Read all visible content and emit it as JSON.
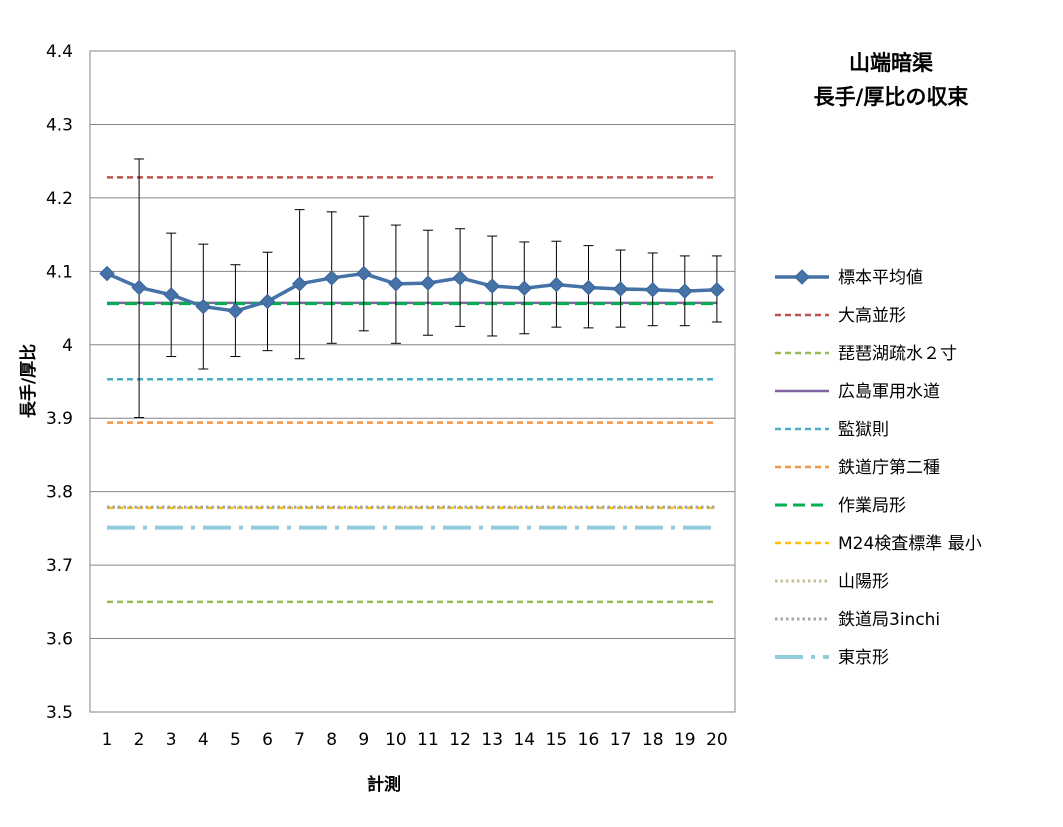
{
  "chart_data": {
    "type": "line",
    "title": [
      "山端暗渠",
      "長手/厚比の収束"
    ],
    "xlabel": "計測",
    "ylabel": "長手/厚比",
    "x": [
      "1",
      "2",
      "3",
      "4",
      "5",
      "6",
      "7",
      "8",
      "9",
      "10",
      "11",
      "12",
      "13",
      "14",
      "15",
      "16",
      "17",
      "18",
      "19",
      "20"
    ],
    "y_ticks": [
      "3.5",
      "3.6",
      "3.7",
      "3.8",
      "3.9",
      "4",
      "4.1",
      "4.2",
      "4.3",
      "4.4"
    ],
    "ylim": [
      3.5,
      4.4
    ],
    "grid": "horizontal",
    "legend_position": "right",
    "series": [
      {
        "name": "標本平均値",
        "style": "line-marker",
        "color": "#4572A7",
        "values": [
          4.097,
          4.078,
          4.068,
          4.052,
          4.046,
          4.059,
          4.083,
          4.091,
          4.097,
          4.083,
          4.084,
          4.091,
          4.08,
          4.077,
          4.082,
          4.078,
          4.076,
          4.075,
          4.073,
          4.075
        ],
        "error_upper": [
          4.097,
          4.253,
          4.152,
          4.137,
          4.109,
          4.126,
          4.184,
          4.181,
          4.175,
          4.163,
          4.156,
          4.158,
          4.148,
          4.14,
          4.141,
          4.135,
          4.129,
          4.125,
          4.121,
          4.121
        ],
        "error_lower": [
          4.097,
          3.901,
          3.984,
          3.967,
          3.984,
          3.992,
          3.981,
          4.002,
          4.019,
          4.002,
          4.013,
          4.025,
          4.012,
          4.015,
          4.024,
          4.023,
          4.024,
          4.026,
          4.026,
          4.031
        ]
      },
      {
        "name": "大高並形",
        "style": "dashed",
        "color": "#C0504D",
        "value": 4.228
      },
      {
        "name": "琵琶湖疏水２寸",
        "style": "dashed",
        "color": "#9BBB59",
        "value": 3.65
      },
      {
        "name": "広島軍用水道",
        "style": "solid",
        "color": "#8064A2",
        "value": 4.057
      },
      {
        "name": "監獄則",
        "style": "dashed",
        "color": "#4BACC6",
        "value": 3.953
      },
      {
        "name": "鉄道庁第二種",
        "style": "dashed",
        "color": "#F79646",
        "value": 3.894
      },
      {
        "name": "作業局形",
        "style": "long-dashed",
        "color": "#00B050",
        "value": 4.056
      },
      {
        "name": "M24検査標準 最小",
        "style": "dashed",
        "color": "#FFC000",
        "value": 3.778
      },
      {
        "name": "山陽形",
        "style": "dotted",
        "color": "#C4BD97",
        "value": 3.779
      },
      {
        "name": "鉄道局3inchi",
        "style": "dotted",
        "color": "#A6A6A6",
        "value": 3.779
      },
      {
        "name": "東京形",
        "style": "dash-dot",
        "color": "#93CDDD",
        "value": 3.751
      }
    ]
  }
}
